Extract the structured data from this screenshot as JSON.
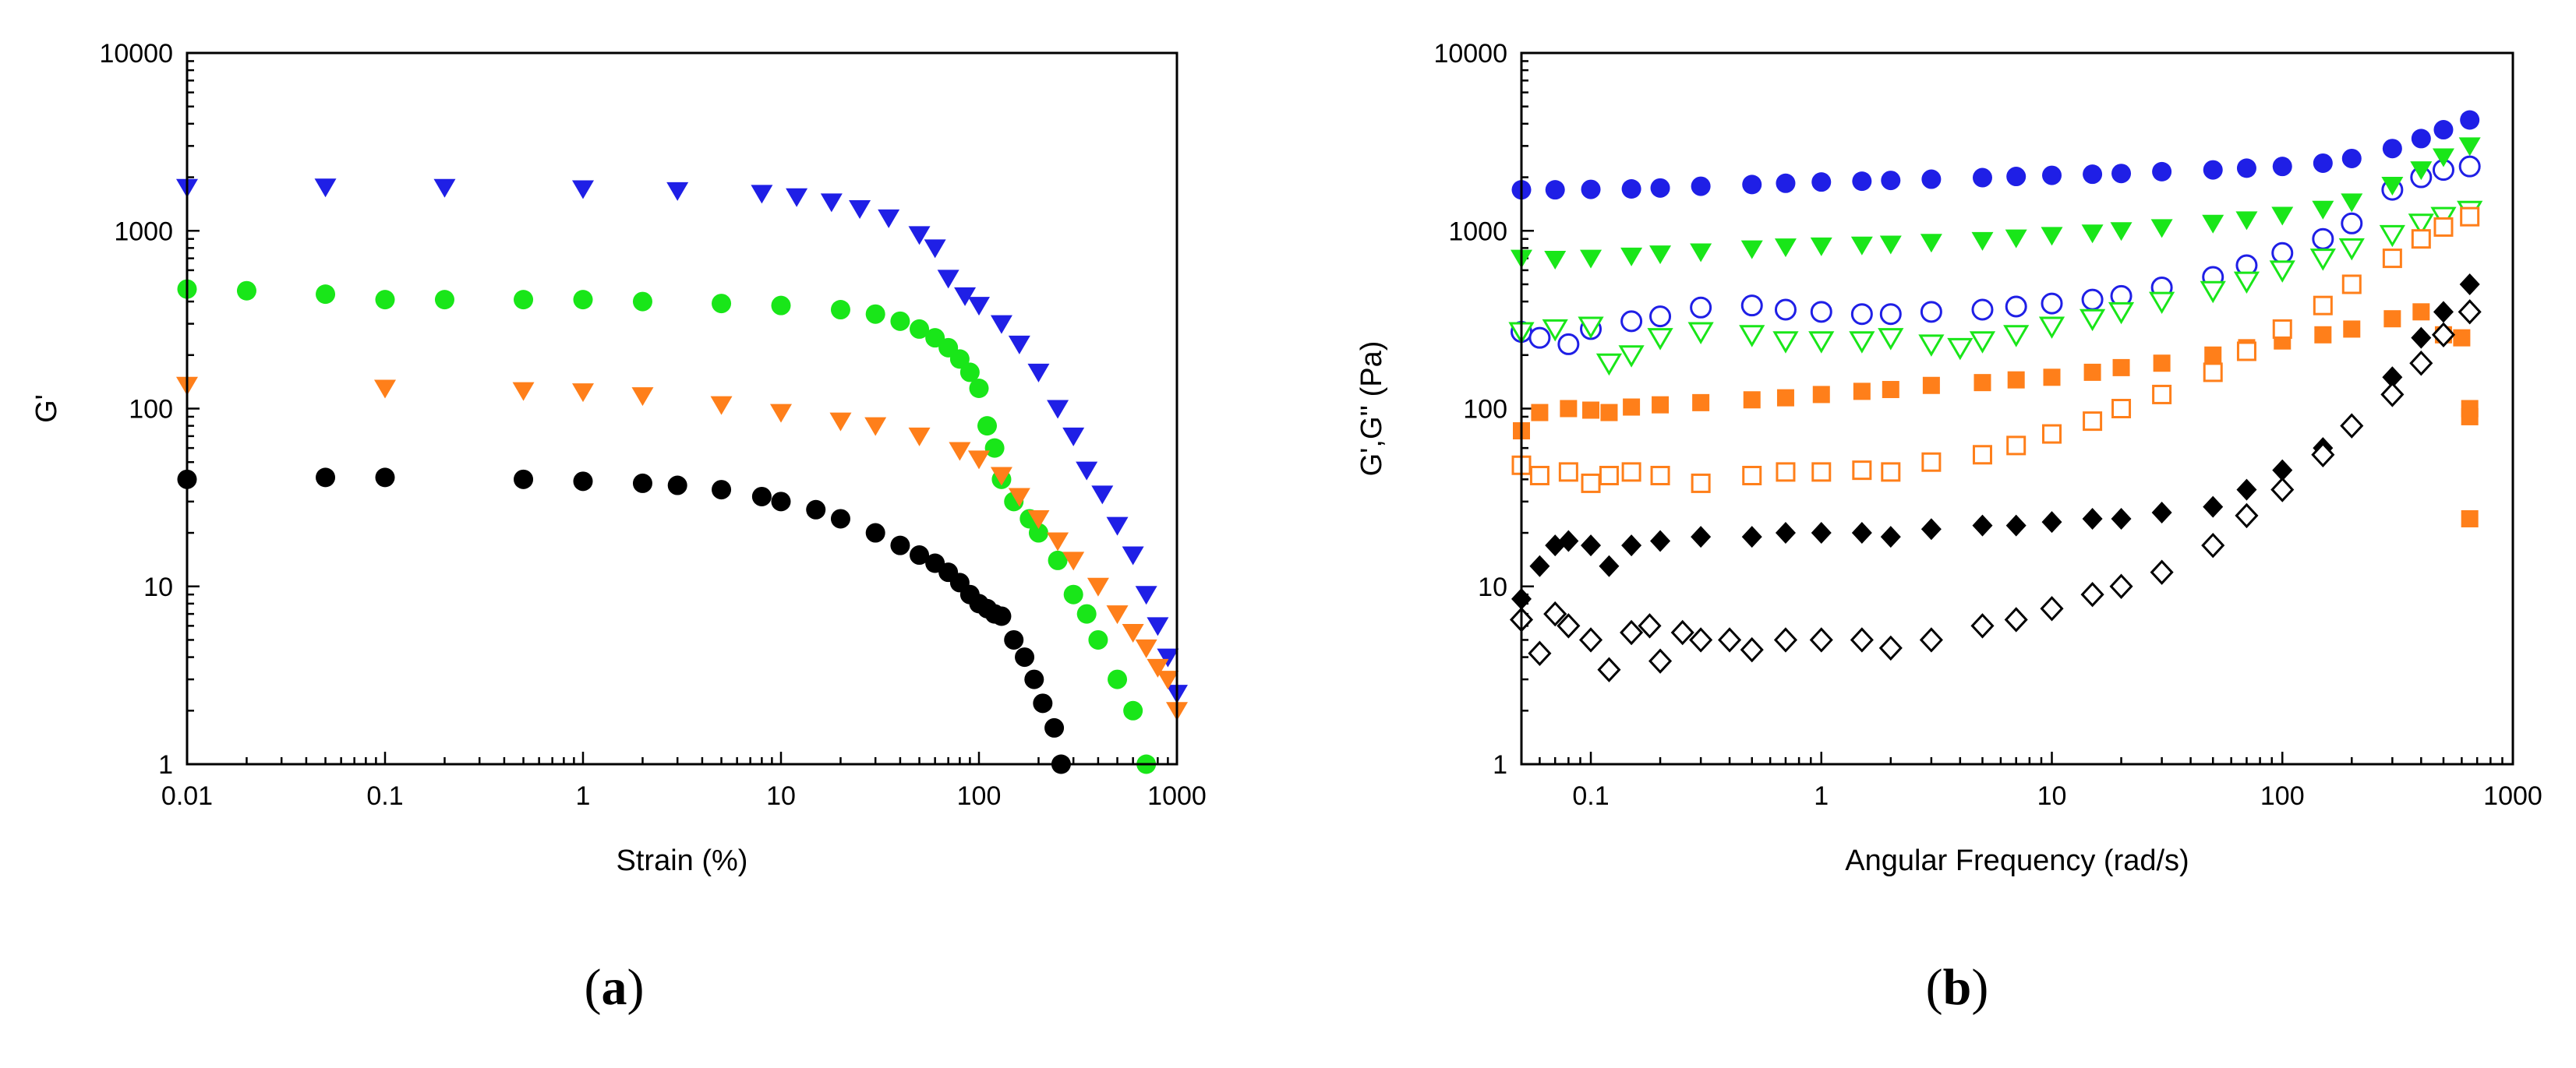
{
  "figure": {
    "panel_a_label": {
      "open": "(",
      "letter": "a",
      "close": ")"
    },
    "panel_b_label": {
      "open": "(",
      "letter": "b",
      "close": ")"
    }
  },
  "chart_data": [
    {
      "id": "a",
      "type": "scatter",
      "title": "",
      "xlabel": "Strain (%)",
      "ylabel": "G'",
      "xscale": "log",
      "yscale": "log",
      "xlim": [
        0.01,
        1000
      ],
      "ylim": [
        1,
        10000
      ],
      "x_tick_labels": [
        "0.01",
        "0.1",
        "1",
        "10",
        "100",
        "1000"
      ],
      "y_tick_labels": [
        "1",
        "10",
        "100",
        "1000",
        "10000"
      ],
      "grid": false,
      "legend": "none",
      "series": [
        {
          "name": "blue",
          "color": "#1f1fe6",
          "marker": "triangle-down",
          "filled": true,
          "x": [
            0.01,
            0.05,
            0.2,
            1,
            3,
            8,
            12,
            18,
            25,
            35,
            50,
            60,
            70,
            85,
            100,
            130,
            160,
            200,
            250,
            300,
            350,
            420,
            500,
            600,
            700,
            800,
            900,
            1000
          ],
          "y": [
            1750,
            1760,
            1750,
            1720,
            1680,
            1620,
            1550,
            1450,
            1330,
            1180,
            950,
            800,
            540,
            430,
            380,
            300,
            230,
            160,
            100,
            70,
            45,
            33,
            22,
            15,
            9,
            6,
            4,
            2.5
          ]
        },
        {
          "name": "green",
          "color": "#19e619",
          "marker": "circle",
          "filled": true,
          "x": [
            0.01,
            0.02,
            0.05,
            0.1,
            0.2,
            0.5,
            1,
            2,
            5,
            10,
            20,
            30,
            40,
            50,
            60,
            70,
            80,
            90,
            100,
            110,
            120,
            130,
            150,
            180,
            200,
            250,
            300,
            350,
            400,
            500,
            600,
            700
          ],
          "y": [
            470,
            460,
            440,
            410,
            410,
            410,
            410,
            400,
            390,
            380,
            360,
            340,
            310,
            280,
            250,
            220,
            190,
            160,
            130,
            80,
            60,
            40,
            30,
            24,
            20,
            14,
            9,
            7,
            5,
            3,
            2,
            1
          ]
        },
        {
          "name": "orange",
          "color": "#ff7f1a",
          "marker": "triangle-down",
          "filled": true,
          "x": [
            0.01,
            0.1,
            0.5,
            1,
            2,
            5,
            10,
            20,
            30,
            50,
            80,
            100,
            130,
            160,
            200,
            250,
            300,
            400,
            500,
            600,
            700,
            800,
            900,
            1000
          ],
          "y": [
            135,
            130,
            126,
            124,
            118,
            105,
            95,
            85,
            80,
            70,
            58,
            52,
            42,
            32,
            24,
            18,
            14,
            10,
            7,
            5.5,
            4.5,
            3.5,
            3,
            2
          ]
        },
        {
          "name": "black",
          "color": "#000000",
          "marker": "circle",
          "filled": true,
          "x": [
            0.01,
            0.05,
            0.1,
            0.5,
            1,
            2,
            3,
            5,
            8,
            10,
            15,
            20,
            30,
            40,
            50,
            60,
            70,
            80,
            90,
            100,
            110,
            120,
            130,
            150,
            170,
            190,
            210,
            240,
            260
          ],
          "y": [
            40,
            41,
            41,
            40,
            39,
            38,
            37,
            35,
            32,
            30,
            27,
            24,
            20,
            17,
            15,
            13.5,
            12,
            10.5,
            9,
            8,
            7.5,
            7,
            6.8,
            5,
            4,
            3,
            2.2,
            1.6,
            1
          ]
        }
      ]
    },
    {
      "id": "b",
      "type": "scatter",
      "title": "",
      "xlabel": "Angular Frequency (rad/s)",
      "ylabel": "G',G'' (Pa)",
      "xscale": "log",
      "yscale": "log",
      "xlim": [
        0.05,
        1000
      ],
      "ylim": [
        1,
        10000
      ],
      "x_tick_labels": [
        "0.1",
        "1",
        "10",
        "100",
        "1000"
      ],
      "y_tick_labels": [
        "1",
        "10",
        "100",
        "1000",
        "10000"
      ],
      "grid": false,
      "legend": "none",
      "series": [
        {
          "name": "blue filled circles",
          "color": "#1f1fe6",
          "marker": "circle",
          "filled": true,
          "x": [
            0.05,
            0.07,
            0.1,
            0.15,
            0.2,
            0.3,
            0.5,
            0.7,
            1,
            1.5,
            2,
            3,
            5,
            7,
            10,
            15,
            20,
            30,
            50,
            70,
            100,
            150,
            200,
            300,
            400,
            500,
            650
          ],
          "y": [
            1700,
            1700,
            1710,
            1720,
            1740,
            1780,
            1820,
            1850,
            1880,
            1900,
            1920,
            1950,
            1990,
            2020,
            2050,
            2080,
            2100,
            2150,
            2200,
            2250,
            2300,
            2400,
            2550,
            2900,
            3300,
            3700,
            4200
          ]
        },
        {
          "name": "blue open circles",
          "color": "#1f1fe6",
          "marker": "circle",
          "filled": false,
          "x": [
            0.05,
            0.06,
            0.08,
            0.1,
            0.15,
            0.2,
            0.3,
            0.5,
            0.7,
            1,
            1.5,
            2,
            3,
            5,
            7,
            10,
            15,
            20,
            30,
            50,
            70,
            100,
            150,
            200,
            300,
            400,
            500,
            650
          ],
          "y": [
            270,
            250,
            230,
            280,
            310,
            330,
            370,
            380,
            360,
            350,
            340,
            340,
            350,
            360,
            375,
            390,
            410,
            430,
            480,
            550,
            640,
            750,
            900,
            1100,
            1700,
            2000,
            2200,
            2300
          ]
        },
        {
          "name": "green filled triangles",
          "color": "#19e619",
          "marker": "triangle-down",
          "filled": true,
          "x": [
            0.05,
            0.07,
            0.1,
            0.15,
            0.2,
            0.3,
            0.5,
            0.7,
            1,
            1.5,
            2,
            3,
            5,
            7,
            10,
            15,
            20,
            30,
            50,
            70,
            100,
            150,
            200,
            300,
            400,
            500,
            650
          ],
          "y": [
            700,
            690,
            700,
            720,
            740,
            760,
            790,
            810,
            820,
            830,
            840,
            860,
            880,
            910,
            940,
            970,
            1000,
            1040,
            1100,
            1150,
            1220,
            1320,
            1450,
            1800,
            2200,
            2600,
            3000
          ]
        },
        {
          "name": "green open triangles",
          "color": "#19e619",
          "marker": "triangle-down",
          "filled": false,
          "x": [
            0.05,
            0.07,
            0.1,
            0.12,
            0.15,
            0.2,
            0.3,
            0.5,
            0.7,
            1,
            1.5,
            2,
            3,
            4,
            5,
            7,
            10,
            15,
            20,
            30,
            50,
            70,
            100,
            150,
            200,
            300,
            400,
            500,
            650
          ],
          "y": [
            270,
            280,
            290,
            180,
            200,
            250,
            270,
            260,
            240,
            240,
            240,
            250,
            230,
            220,
            240,
            260,
            290,
            320,
            350,
            400,
            460,
            520,
            600,
            700,
            800,
            950,
            1100,
            1200,
            1300
          ]
        },
        {
          "name": "orange filled squares",
          "color": "#ff7f1a",
          "marker": "square",
          "filled": true,
          "x": [
            0.05,
            0.06,
            0.08,
            0.1,
            0.12,
            0.15,
            0.2,
            0.3,
            0.5,
            0.7,
            1,
            1.5,
            2,
            3,
            5,
            7,
            10,
            15,
            20,
            30,
            50,
            70,
            100,
            150,
            200,
            300,
            400,
            500,
            600,
            650,
            650,
            650
          ],
          "y": [
            75,
            95,
            100,
            98,
            95,
            102,
            105,
            108,
            112,
            115,
            120,
            125,
            128,
            135,
            140,
            145,
            150,
            160,
            170,
            180,
            200,
            220,
            240,
            260,
            280,
            320,
            350,
            260,
            250,
            100,
            90,
            24
          ]
        },
        {
          "name": "orange open squares",
          "color": "#ff7f1a",
          "marker": "square",
          "filled": false,
          "x": [
            0.05,
            0.06,
            0.08,
            0.1,
            0.12,
            0.15,
            0.2,
            0.3,
            0.5,
            0.7,
            1,
            1.5,
            2,
            3,
            5,
            7,
            10,
            15,
            20,
            30,
            50,
            70,
            100,
            150,
            200,
            300,
            400,
            500,
            650
          ],
          "y": [
            48,
            42,
            44,
            38,
            42,
            44,
            42,
            38,
            42,
            44,
            44,
            45,
            44,
            50,
            55,
            62,
            72,
            85,
            100,
            120,
            160,
            210,
            280,
            380,
            500,
            700,
            900,
            1050,
            1200
          ]
        },
        {
          "name": "black filled diamonds",
          "color": "#000000",
          "marker": "diamond",
          "filled": true,
          "x": [
            0.05,
            0.06,
            0.07,
            0.08,
            0.1,
            0.12,
            0.15,
            0.2,
            0.3,
            0.5,
            0.7,
            1,
            1.5,
            2,
            3,
            5,
            7,
            10,
            15,
            20,
            30,
            50,
            70,
            100,
            150,
            200,
            300,
            400,
            500,
            650
          ],
          "y": [
            8.5,
            13,
            17,
            18,
            17,
            13,
            17,
            18,
            19,
            19,
            20,
            20,
            20,
            19,
            21,
            22,
            22,
            23,
            24,
            24,
            26,
            28,
            35,
            45,
            60,
            80,
            150,
            250,
            350,
            500
          ]
        },
        {
          "name": "black open diamonds",
          "color": "#000000",
          "marker": "diamond",
          "filled": false,
          "x": [
            0.05,
            0.06,
            0.07,
            0.08,
            0.1,
            0.12,
            0.15,
            0.18,
            0.2,
            0.25,
            0.3,
            0.4,
            0.5,
            0.7,
            1,
            1.5,
            2,
            3,
            5,
            7,
            10,
            15,
            20,
            30,
            50,
            70,
            100,
            150,
            200,
            300,
            400,
            500,
            650
          ],
          "y": [
            6.5,
            4.2,
            7,
            6,
            5,
            3.4,
            5.5,
            6,
            3.8,
            5.5,
            5,
            5,
            4.4,
            5,
            5,
            5,
            4.5,
            5,
            6,
            6.5,
            7.5,
            9,
            10,
            12,
            17,
            25,
            35,
            55,
            80,
            120,
            180,
            260,
            350
          ]
        }
      ]
    }
  ]
}
